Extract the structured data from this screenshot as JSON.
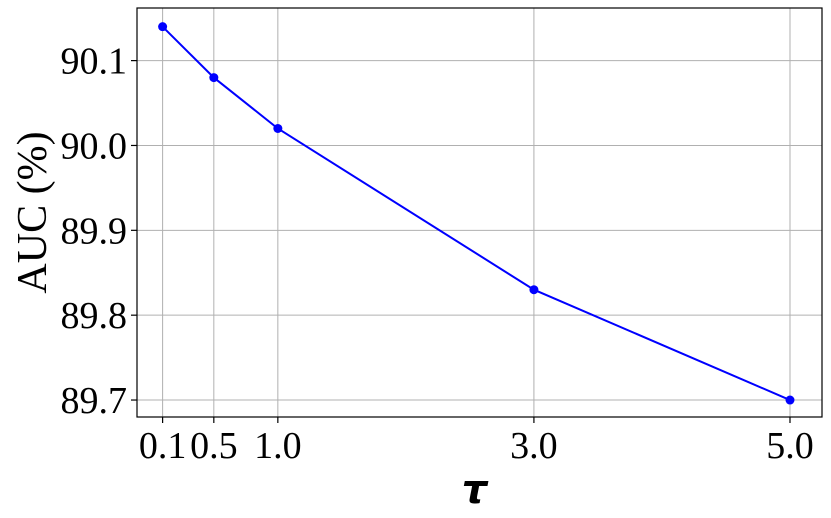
{
  "chart_data": {
    "type": "line",
    "title": "",
    "xlabel": "τ",
    "ylabel": "AUC (%)",
    "x": [
      0.1,
      0.5,
      1.0,
      3.0,
      5.0
    ],
    "x_tick_labels": [
      "0.1",
      "0.5",
      "1.0",
      "3.0",
      "5.0"
    ],
    "y_ticks": [
      89.7,
      89.8,
      89.9,
      90.0,
      90.1
    ],
    "y_tick_labels": [
      "89.7",
      "89.8",
      "89.9",
      "90.0",
      "90.1"
    ],
    "xlim": [
      -0.1,
      5.25
    ],
    "ylim": [
      89.68,
      90.162
    ],
    "grid": true,
    "series": [
      {
        "values": [
          90.14,
          90.08,
          90.02,
          89.83,
          89.7
        ],
        "color": "#0000ff",
        "marker": "circle"
      }
    ]
  }
}
